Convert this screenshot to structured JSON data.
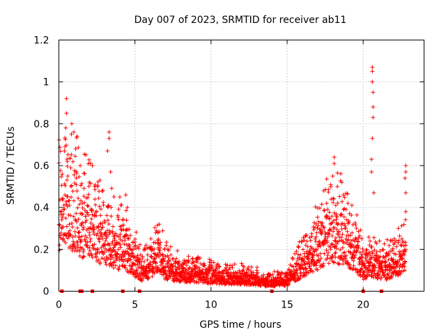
{
  "chart_data": {
    "type": "scatter",
    "title": "Day 007 of 2023, SRMTID for receiver ab11",
    "xlabel": "GPS time / hours",
    "ylabel": "SRMTID / TECUs",
    "xlim": [
      0,
      24
    ],
    "ylim": [
      0,
      1.2
    ],
    "xticks": [
      "0",
      "5",
      "10",
      "15",
      "20"
    ],
    "xtick_values": [
      0,
      5,
      10,
      15,
      20
    ],
    "yticks": [
      "0",
      "0.2",
      "0.4",
      "0.6",
      "0.8",
      "1",
      "1.2"
    ],
    "ytick_values": [
      0,
      0.2,
      0.4,
      0.6,
      0.8,
      1.0,
      1.2
    ],
    "grid": true,
    "marker": "+",
    "color": "#ff0000",
    "trend_hours": [
      0,
      0.5,
      1,
      1.5,
      2,
      2.5,
      3,
      3.5,
      4,
      4.5,
      5,
      5.5,
      6,
      6.5,
      7,
      7.5,
      8,
      9,
      10,
      11,
      12,
      13,
      13.5,
      14,
      14.5,
      15,
      15.5,
      16,
      16.5,
      17,
      17.5,
      18,
      18.5,
      19,
      19.5,
      20,
      20.5,
      21,
      21.5,
      22,
      22.5,
      22.8
    ],
    "trend_values": [
      0.4,
      0.45,
      0.4,
      0.35,
      0.38,
      0.3,
      0.27,
      0.25,
      0.22,
      0.2,
      0.15,
      0.1,
      0.14,
      0.2,
      0.12,
      0.1,
      0.09,
      0.09,
      0.08,
      0.07,
      0.07,
      0.06,
      0.05,
      0.05,
      0.05,
      0.06,
      0.1,
      0.15,
      0.18,
      0.22,
      0.28,
      0.3,
      0.28,
      0.25,
      0.2,
      0.12,
      0.14,
      0.13,
      0.12,
      0.15,
      0.18,
      0.22
    ],
    "highlights": [
      {
        "x": 0.5,
        "y": 0.92
      },
      {
        "x": 0.5,
        "y": 0.85
      },
      {
        "x": 0.45,
        "y": 0.78
      },
      {
        "x": 0.4,
        "y": 0.69
      },
      {
        "x": 0.55,
        "y": 0.62
      },
      {
        "x": 1.2,
        "y": 0.74
      },
      {
        "x": 1.1,
        "y": 0.68
      },
      {
        "x": 1.4,
        "y": 0.6
      },
      {
        "x": 2.2,
        "y": 0.6
      },
      {
        "x": 2.0,
        "y": 0.52
      },
      {
        "x": 3.3,
        "y": 0.76
      },
      {
        "x": 3.3,
        "y": 0.73
      },
      {
        "x": 3.2,
        "y": 0.67
      },
      {
        "x": 3.4,
        "y": 0.57
      },
      {
        "x": 2.7,
        "y": 0.53
      },
      {
        "x": 4.4,
        "y": 0.46
      },
      {
        "x": 4.5,
        "y": 0.4
      },
      {
        "x": 6.6,
        "y": 0.32
      },
      {
        "x": 6.5,
        "y": 0.28
      },
      {
        "x": 17.4,
        "y": 0.48
      },
      {
        "x": 17.6,
        "y": 0.42
      },
      {
        "x": 18.1,
        "y": 0.64
      },
      {
        "x": 18.1,
        "y": 0.61
      },
      {
        "x": 18.0,
        "y": 0.55
      },
      {
        "x": 18.3,
        "y": 0.5
      },
      {
        "x": 18.6,
        "y": 0.52
      },
      {
        "x": 18.7,
        "y": 0.46
      },
      {
        "x": 19.0,
        "y": 0.42
      },
      {
        "x": 20.6,
        "y": 1.07
      },
      {
        "x": 20.6,
        "y": 1.05
      },
      {
        "x": 20.6,
        "y": 1.0
      },
      {
        "x": 20.65,
        "y": 0.95
      },
      {
        "x": 20.65,
        "y": 0.88
      },
      {
        "x": 20.65,
        "y": 0.83
      },
      {
        "x": 20.6,
        "y": 0.73
      },
      {
        "x": 20.55,
        "y": 0.63
      },
      {
        "x": 20.55,
        "y": 0.57
      },
      {
        "x": 20.7,
        "y": 0.47
      },
      {
        "x": 22.8,
        "y": 0.6
      },
      {
        "x": 22.8,
        "y": 0.57
      },
      {
        "x": 22.75,
        "y": 0.54
      },
      {
        "x": 22.8,
        "y": 0.47
      },
      {
        "x": 22.8,
        "y": 0.38
      }
    ],
    "zero_markers": [
      0.2,
      1.4,
      1.5,
      2.2,
      4.2,
      5.3,
      14.0,
      20.0,
      21.2
    ]
  }
}
